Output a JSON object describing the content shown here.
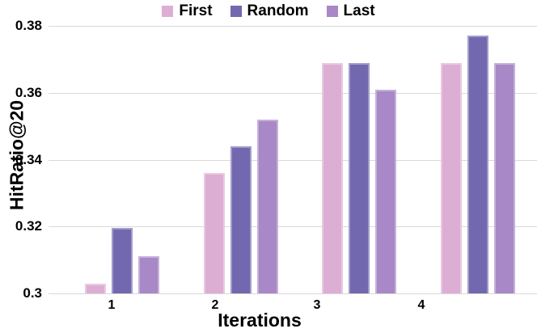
{
  "chart_data": {
    "type": "bar",
    "xlabel": "Iterations",
    "ylabel": "HitRatio@20",
    "categories": [
      "1",
      "2",
      "3",
      "4"
    ],
    "series": [
      {
        "name": "First",
        "color": "#DDAED3",
        "values": [
          0.303,
          0.336,
          0.369,
          0.369
        ]
      },
      {
        "name": "Random",
        "color": "#7268AF",
        "values": [
          0.3195,
          0.344,
          0.369,
          0.377
        ]
      },
      {
        "name": "Last",
        "color": "#A888C6",
        "values": [
          0.311,
          0.352,
          0.361,
          0.369
        ]
      }
    ],
    "ylim": [
      0.3,
      0.38
    ],
    "yticks": [
      0.3,
      0.32,
      0.34,
      0.36,
      0.38
    ],
    "ytick_labels": [
      "0.3",
      "0.32",
      "0.34",
      "0.36",
      "0.38"
    ],
    "grid": true,
    "legend_position": "top",
    "gridline_color": "#D9D9D9",
    "text_color": "#000000",
    "background": "#FFFFFF"
  }
}
